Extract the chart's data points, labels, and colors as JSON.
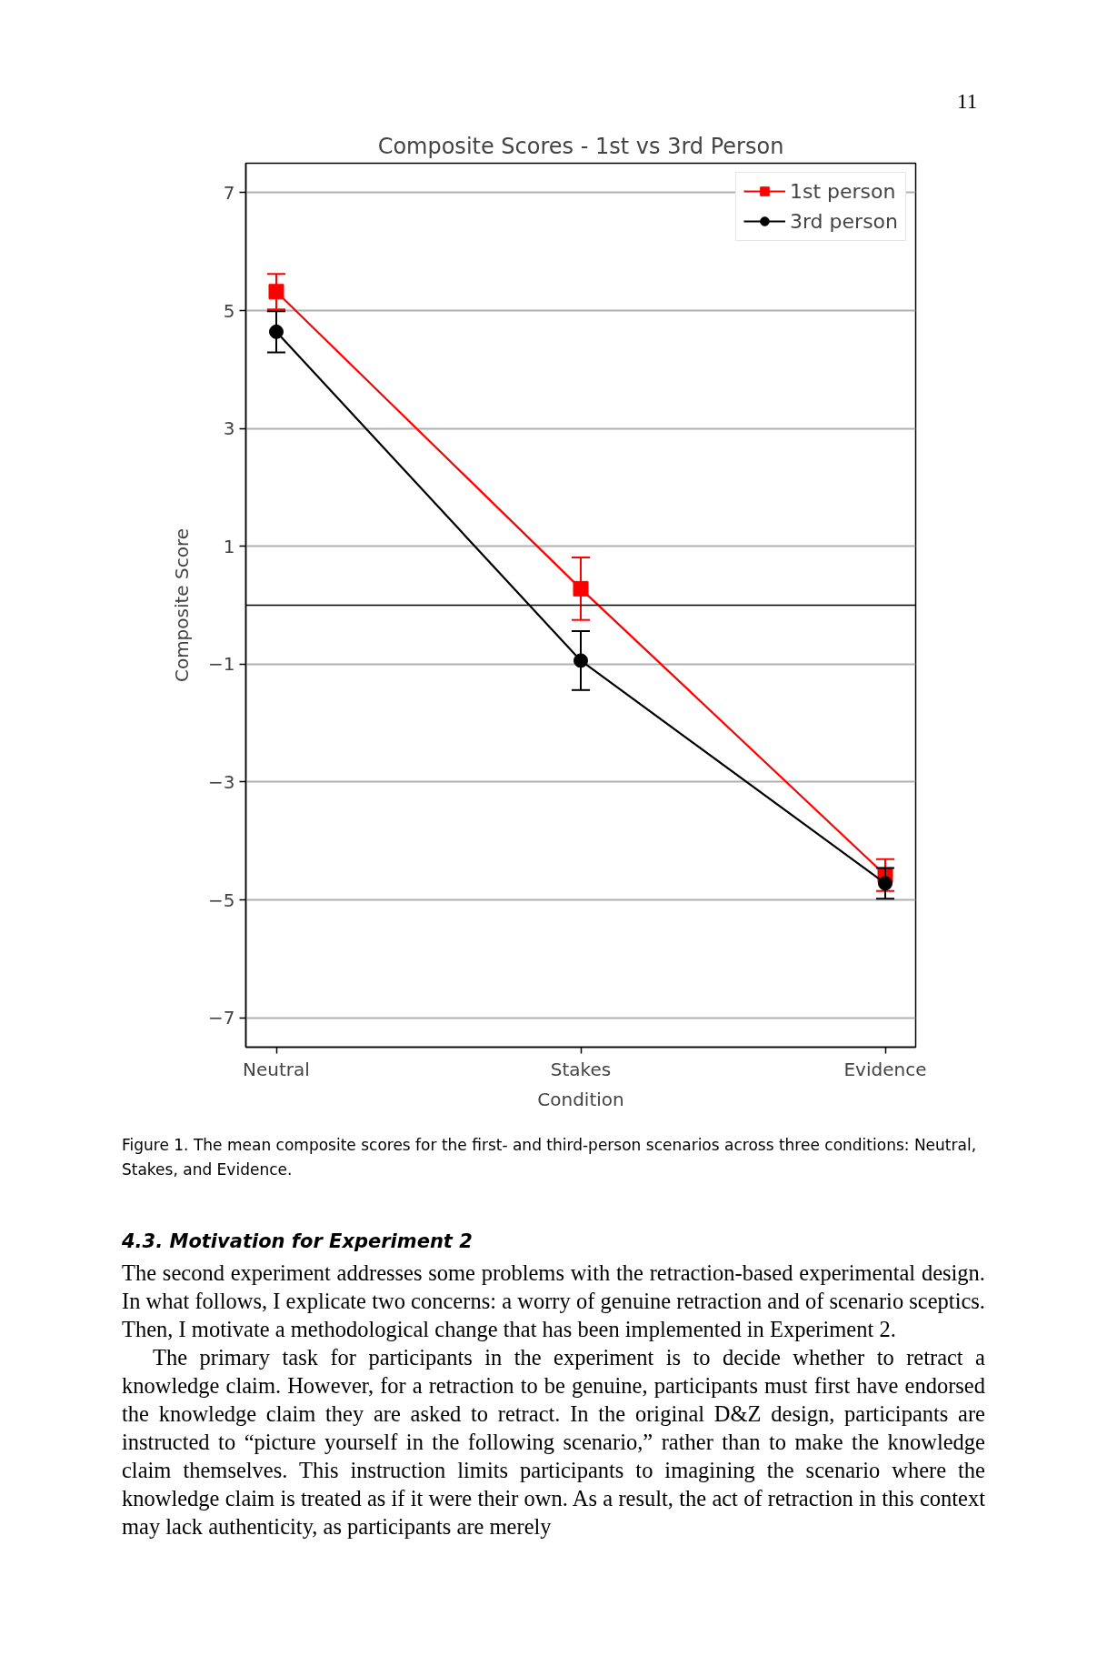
{
  "chart_data": {
    "type": "line",
    "title": "Composite Scores - 1st vs 3rd Person",
    "xlabel": "Condition",
    "ylabel": "Composite Score",
    "categories": [
      "Neutral",
      "Stakes",
      "Evidence"
    ],
    "series": [
      {
        "name": "1st person",
        "color": "#ff0000",
        "marker": "square",
        "values": [
          5.32,
          0.28,
          -4.58
        ],
        "errors": [
          0.3,
          0.53,
          0.27
        ]
      },
      {
        "name": "3rd person",
        "color": "#000000",
        "marker": "circle",
        "values": [
          4.64,
          -0.94,
          -4.72
        ],
        "errors": [
          0.35,
          0.5,
          0.26
        ]
      }
    ],
    "ylim": [
      -7.5,
      7.5
    ],
    "yticks": [
      7,
      5,
      3,
      1,
      {
        "value": -1,
        "label": "−1"
      },
      {
        "value": -3,
        "label": "−3"
      },
      {
        "value": -5,
        "label": "−5"
      },
      {
        "value": -7,
        "label": "−7"
      }
    ],
    "grid": "y",
    "legend": "top right",
    "ref_lines": [
      {
        "axis": "y",
        "value": 0,
        "color": "#000000"
      }
    ],
    "annotations": [
      "11",
      "Figure 1. The mean composite scores for the first- and third-person scenarios across three conditions: Neutral, Stakes, and Evidence.",
      "4.3. Motivation for Experiment 2",
      "The second experiment addresses some problems with the retraction-based experimental design. In what follows, I explicate two concerns: a worry of genuine retraction and of scenario sceptics. Then, I motivate a methodological change that has been implemented in Experiment 2.",
      "The primary task for participants in the experiment is to decide whether to retract a knowledge claim. However, for a retraction to be genuine, participants must first have endorsed the knowledge claim they are asked to retract. In the original D&Z design, participants are instructed to “picture yourself in the following scenario,” rather than to make the knowledge claim themselves. This instruction limits participants to imagining the scenario where the knowledge claim is treated as if it were their own. As a result, the act of retraction in this context may lack authenticity, as participants are merely"
    ]
  }
}
